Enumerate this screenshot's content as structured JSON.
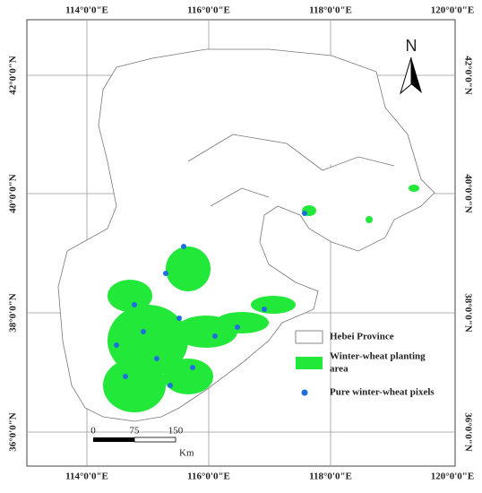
{
  "graticule": {
    "longitudes": [
      "114°0'0\"E",
      "116°0'0\"E",
      "118°0'0\"E",
      "120°0'0\"E"
    ],
    "latitudes": [
      "42°0'0\"N",
      "40°0'0\"N",
      "38°0'0\"N",
      "36°0'0\"N"
    ]
  },
  "north_arrow": "N",
  "legend": [
    "Hebei Province",
    "Winter-wheat planting",
    "area",
    "Pure winter-wheat pixels"
  ],
  "scale_bar": {
    "labels": [
      "0",
      "75",
      "150"
    ],
    "unit": "Km"
  }
}
